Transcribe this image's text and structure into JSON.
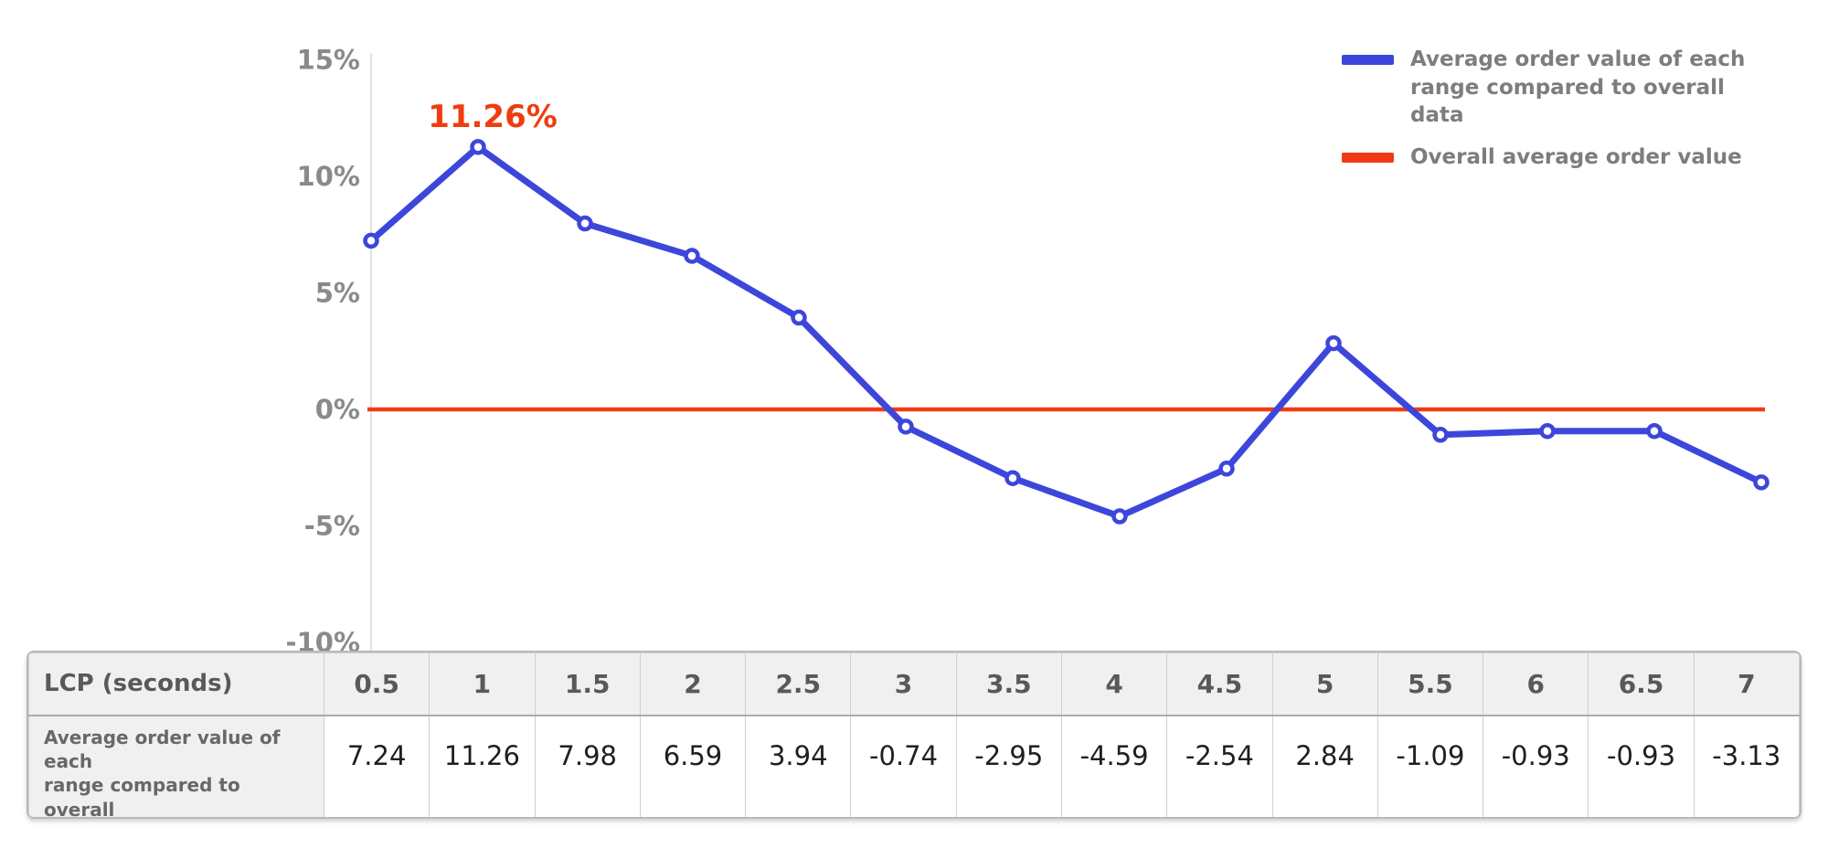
{
  "colors": {
    "series_blue": "#3d46db",
    "overall_red": "#f23b14",
    "annotation_red": "#f03c0e",
    "tick_text": "#8a8a8a",
    "axis_line": "#e2e2e2",
    "marker_fill": "#ffffff"
  },
  "legend": {
    "items": [
      {
        "swatch": "blue-line-swatch",
        "label": "Average order value of each\nrange compared to overall data"
      },
      {
        "swatch": "red-line-swatch",
        "label": "Overall average order value"
      }
    ]
  },
  "chart_data": {
    "type": "line",
    "title": "",
    "xlabel": "LCP (seconds)",
    "ylabel": "",
    "ylim": [
      -10,
      15
    ],
    "grid": false,
    "legend_position": "top-right",
    "categories": [
      "0.5",
      "1",
      "1.5",
      "2",
      "2.5",
      "3",
      "3.5",
      "4",
      "4.5",
      "5",
      "5.5",
      "6",
      "6.5",
      "7"
    ],
    "series": [
      {
        "name": "Average order value of each range compared to overall data",
        "color": "#3d46db",
        "values": [
          7.24,
          11.26,
          7.98,
          6.59,
          3.94,
          -0.74,
          -2.95,
          -4.59,
          -2.54,
          2.84,
          -1.09,
          -0.93,
          -0.93,
          -3.13
        ]
      },
      {
        "name": "Overall average order value",
        "color": "#f23b14",
        "values": [
          0,
          0,
          0,
          0,
          0,
          0,
          0,
          0,
          0,
          0,
          0,
          0,
          0,
          0
        ]
      }
    ],
    "yticks": [
      {
        "label": "15%",
        "value": 15
      },
      {
        "label": "10%",
        "value": 10
      },
      {
        "label": "5%",
        "value": 5
      },
      {
        "label": "0%",
        "value": 0
      },
      {
        "label": "-5%",
        "value": -5
      },
      {
        "label": "-10%",
        "value": -10
      }
    ],
    "annotation": {
      "text": "11.26%",
      "at_category": "1"
    }
  },
  "table": {
    "header_label": "LCP (seconds)",
    "row_label": "Average order value of each\nrange compared to overall\ndata (%)",
    "columns": [
      "0.5",
      "1",
      "1.5",
      "2",
      "2.5",
      "3",
      "3.5",
      "4",
      "4.5",
      "5",
      "5.5",
      "6",
      "6.5",
      "7"
    ],
    "values": [
      "7.24",
      "11.26",
      "7.98",
      "6.59",
      "3.94",
      "-0.74",
      "-2.95",
      "-4.59",
      "-2.54",
      "2.84",
      "-1.09",
      "-0.93",
      "-0.93",
      "-3.13"
    ]
  }
}
